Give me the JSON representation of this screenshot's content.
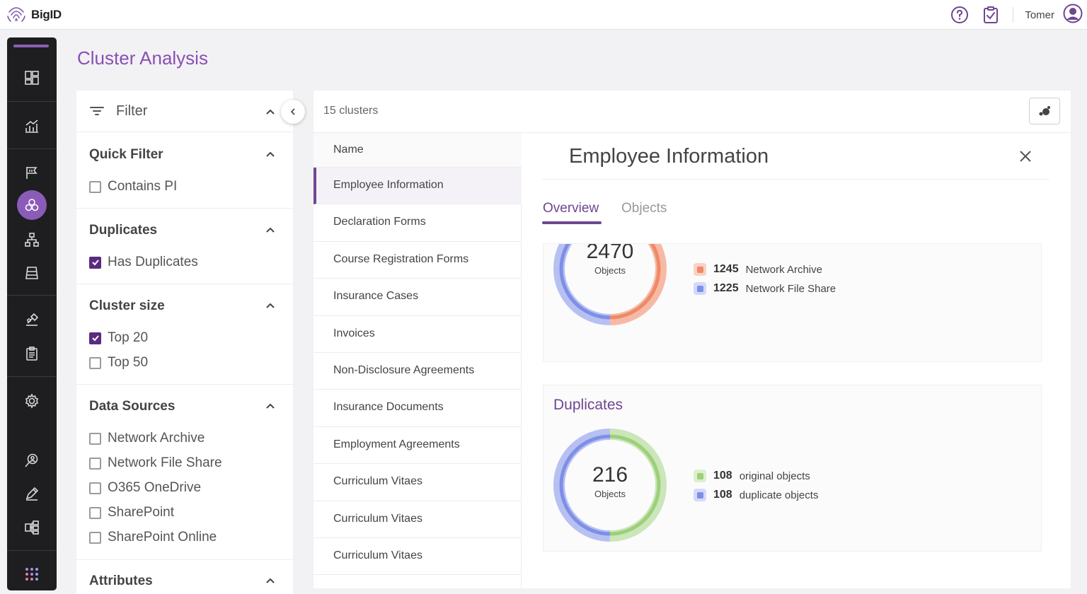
{
  "app": {
    "logo_text": "BigID"
  },
  "header": {
    "user_name": "Tomer"
  },
  "page": {
    "title": "Cluster Analysis"
  },
  "filter": {
    "title": "Filter",
    "sections": [
      {
        "title": "Quick Filter",
        "options": [
          {
            "label": "Contains PI",
            "checked": false
          }
        ]
      },
      {
        "title": "Duplicates",
        "options": [
          {
            "label": "Has Duplicates",
            "checked": true
          }
        ]
      },
      {
        "title": "Cluster size",
        "options": [
          {
            "label": "Top 20",
            "checked": true
          },
          {
            "label": "Top 50",
            "checked": false
          }
        ]
      },
      {
        "title": "Data Sources",
        "options": [
          {
            "label": "Network Archive",
            "checked": false
          },
          {
            "label": "Network File Share",
            "checked": false
          },
          {
            "label": "O365 OneDrive",
            "checked": false
          },
          {
            "label": "SharePoint",
            "checked": false
          },
          {
            "label": "SharePoint Online",
            "checked": false
          }
        ]
      },
      {
        "title": "Attributes",
        "options": []
      }
    ]
  },
  "clusters": {
    "count_label": "15 clusters",
    "column_header": "Name",
    "items": [
      "Employee Information",
      "Declaration Forms",
      "Course Registration Forms",
      "Insurance Cases",
      "Invoices",
      "Non-Disclosure Agreements",
      "Insurance Documents",
      "Employment Agreements",
      "Curriculum Vitaes",
      "Curriculum Vitaes",
      "Curriculum Vitaes"
    ],
    "selected_index": 0
  },
  "detail": {
    "title": "Employee Information",
    "tabs": [
      "Overview",
      "Objects"
    ],
    "active_tab": "Overview",
    "objects_card": {
      "total": "2470",
      "total_label": "Objects",
      "legend": [
        {
          "value": "1245",
          "label": "Network Archive",
          "color": "#ee8a68"
        },
        {
          "value": "1225",
          "label": "Network File Share",
          "color": "#7f8ee6"
        }
      ]
    },
    "duplicates_card": {
      "title": "Duplicates",
      "total": "216",
      "total_label": "Objects",
      "legend": [
        {
          "value": "108",
          "label": "original objects",
          "color": "#9cd07a"
        },
        {
          "value": "108",
          "label": "duplicate objects",
          "color": "#7f8ee6"
        }
      ]
    }
  },
  "colors": {
    "accent": "#8a4fb5",
    "nav_bg": "#1e1e21",
    "active_nav": "#8a5cb8",
    "selected_bar": "#6e4691"
  },
  "icons": {
    "nav": [
      "dashboard-icon",
      "analytics-icon",
      "flag-icon",
      "cluster-icon",
      "hierarchy-icon",
      "catalog-icon",
      "remediation-icon",
      "report-icon",
      "settings-icon",
      "search-person-icon",
      "pen-icon",
      "datasource-icon",
      "apps-grid-icon"
    ],
    "header": [
      "help-icon",
      "tasks-icon",
      "user-avatar-icon"
    ]
  }
}
